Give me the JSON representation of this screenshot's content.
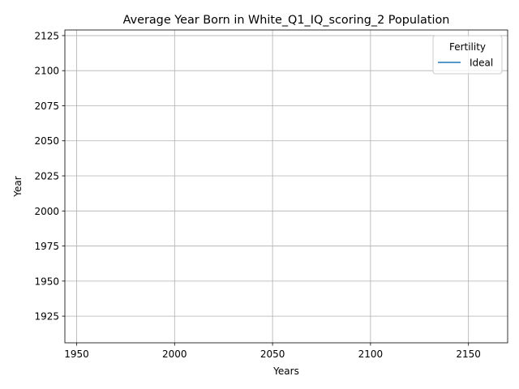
{
  "chart_data": {
    "type": "line",
    "title": "Average Year Born in White_Q1_IQ_scoring_2 Population",
    "xlabel": "Years",
    "ylabel": "Year",
    "xlim": [
      1944,
      2170
    ],
    "ylim": [
      1906,
      2129
    ],
    "x_ticks": [
      1950,
      2000,
      2050,
      2100,
      2150
    ],
    "y_ticks": [
      1925,
      1950,
      1975,
      2000,
      2025,
      2050,
      2075,
      2100,
      2125
    ],
    "grid": true,
    "legend": {
      "title": "Fertility",
      "placement": "top-right"
    },
    "series": [
      {
        "name": "Ideal",
        "color": "#1f77b4",
        "x": [],
        "y": []
      }
    ]
  }
}
